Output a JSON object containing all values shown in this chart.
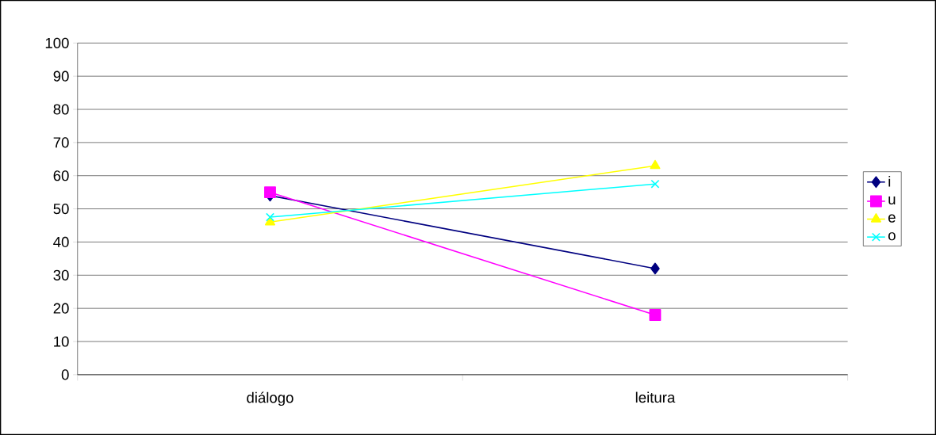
{
  "chart_data": {
    "type": "line",
    "categories": [
      "diálogo",
      "leitura"
    ],
    "series": [
      {
        "name": "i",
        "color": "#000080",
        "values": [
          54,
          32
        ],
        "marker": "diamond"
      },
      {
        "name": "u",
        "color": "#ff00ff",
        "values": [
          55,
          18
        ],
        "marker": "square"
      },
      {
        "name": "e",
        "color": "#ffff00",
        "values": [
          46,
          63
        ],
        "marker": "triangle"
      },
      {
        "name": "o",
        "color": "#00ffff",
        "values": [
          47.5,
          57.5
        ],
        "marker": "cross"
      }
    ],
    "ylim": [
      0,
      100
    ],
    "yticks": [
      0,
      10,
      20,
      30,
      40,
      50,
      60,
      70,
      80,
      90,
      100
    ],
    "grid": "y",
    "legend": "right",
    "line_style": "solid"
  }
}
